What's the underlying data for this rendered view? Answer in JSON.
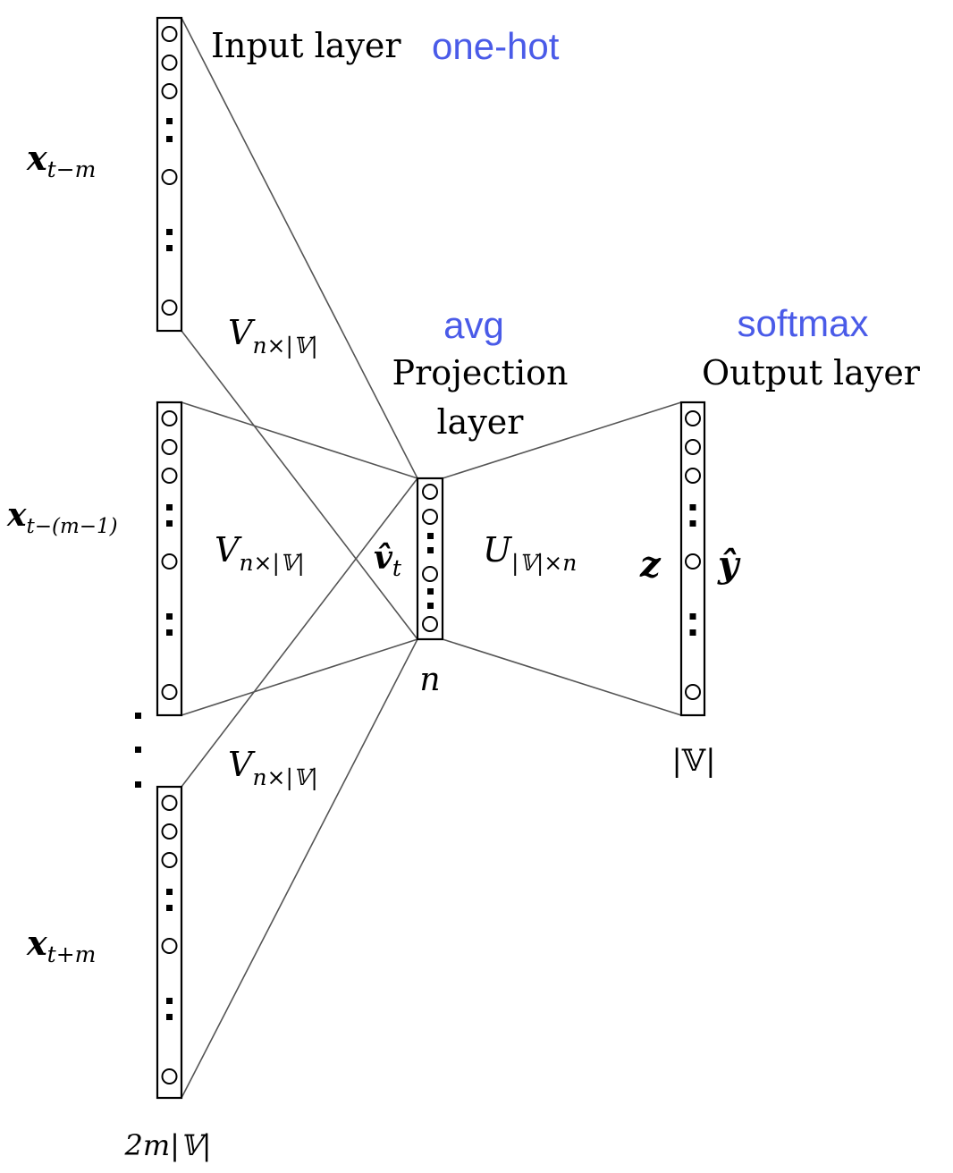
{
  "colors": {
    "ink": "#000000",
    "annotation_blue": "#4a5be8",
    "line_gray": "#555555",
    "background": "#ffffff"
  },
  "labels": {
    "input_layer": "Input layer",
    "one_hot": "one-hot",
    "avg": "avg",
    "projection_line1": "Projection",
    "projection_line2": "layer",
    "softmax": "softmax",
    "output_layer": "Output layer"
  },
  "math": {
    "x_symbol": "x",
    "x_sub_t_minus_m": "t−m",
    "x_sub_t_minus_m_minus_1": "t−(m−1)",
    "x_sub_t_plus_m": "t+m",
    "V_symbol": "V",
    "V_sub": "n×|𝕍|",
    "U_symbol": "U",
    "U_sub": "|𝕍|×n",
    "v_hat_symbol": "v̂",
    "v_hat_sub": "t",
    "z_symbol": "z",
    "y_hat_symbol": "ŷ",
    "n_label": "n",
    "vocab_label": "|𝕍|",
    "input_dim_label": "2m|𝕍|"
  }
}
